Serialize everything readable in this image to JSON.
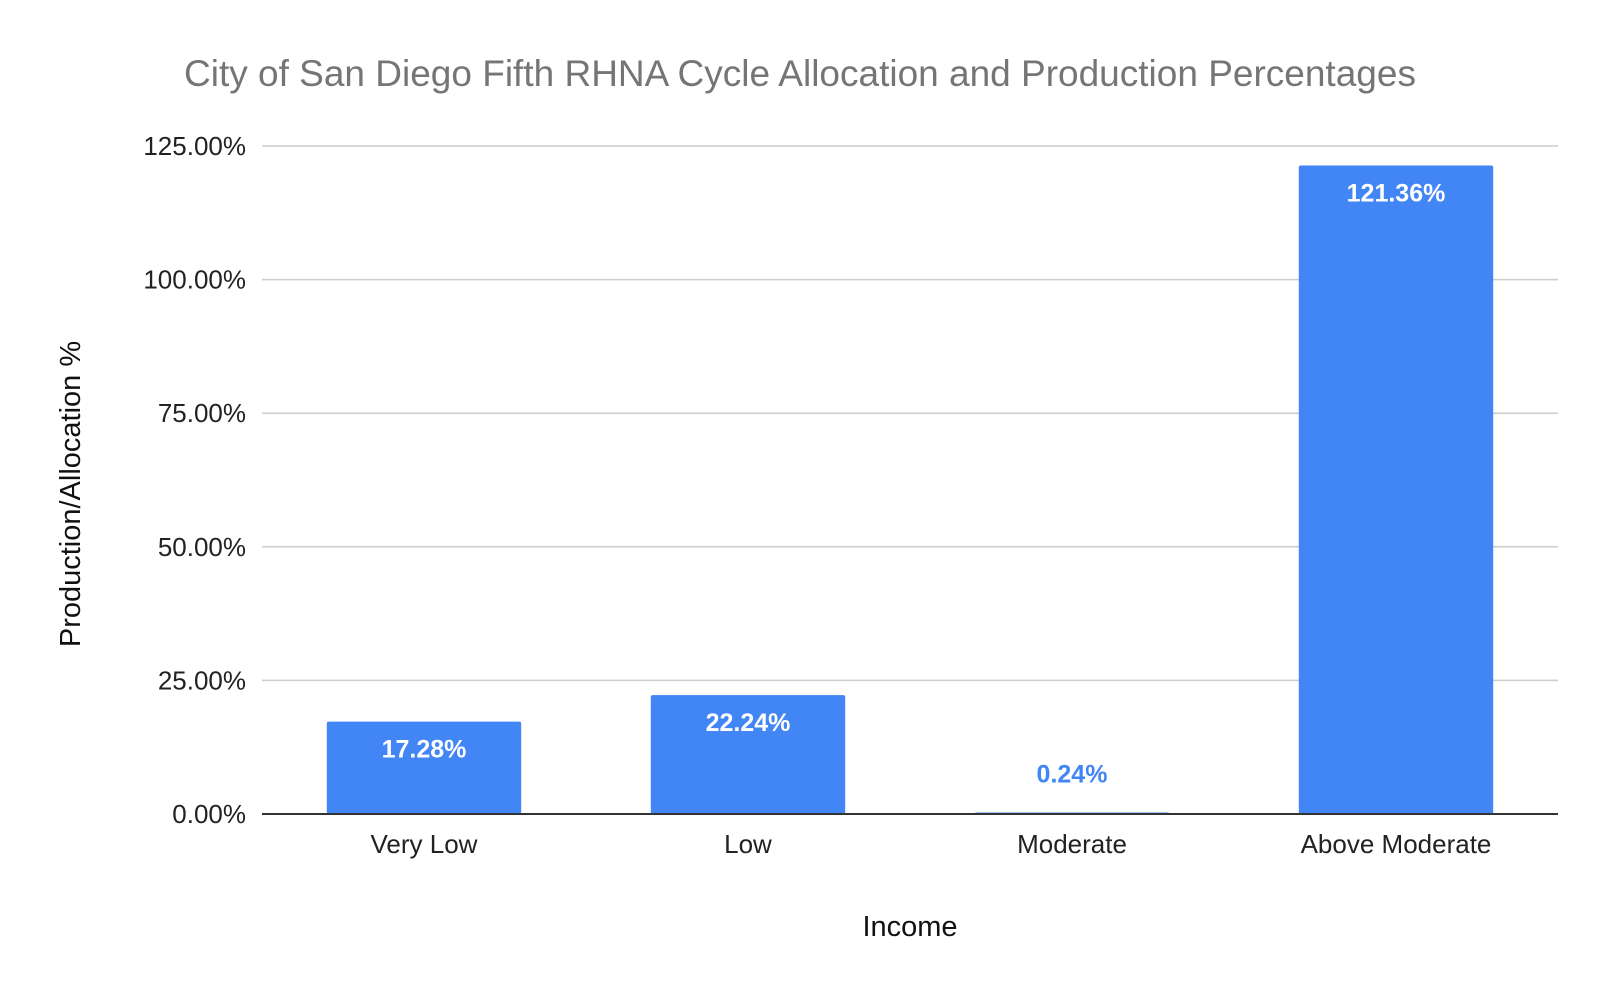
{
  "chart_data": {
    "type": "bar",
    "title": "City of San Diego Fifth RHNA Cycle Allocation and Production Percentages",
    "xlabel": "Income",
    "ylabel": "Production/Allocation %",
    "categories": [
      "Very Low",
      "Low",
      "Moderate",
      "Above Moderate"
    ],
    "values": [
      17.28,
      22.24,
      0.24,
      121.36
    ],
    "data_labels": [
      "17.28%",
      "22.24%",
      "0.24%",
      "121.36%"
    ],
    "ylim": [
      0,
      125
    ],
    "yticks": [
      0,
      25,
      50,
      75,
      100,
      125
    ],
    "ytick_labels": [
      "0.00%",
      "25.00%",
      "50.00%",
      "75.00%",
      "100.00%",
      "125.00%"
    ],
    "grid": true,
    "legend": "none",
    "bar_color": "#4285f4",
    "label_inside_color": "#ffffff",
    "label_outside_color": "#4285f4"
  }
}
